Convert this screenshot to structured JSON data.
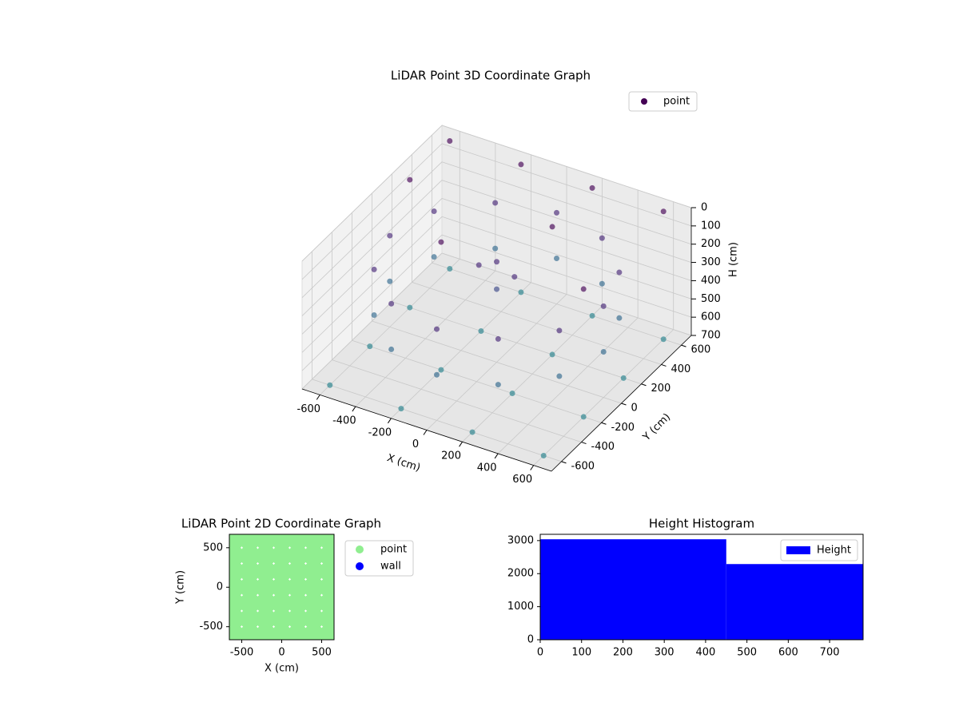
{
  "chart_data": [
    {
      "type": "scatter3d",
      "title": "LiDAR Point 3D Coordinate Graph",
      "xlabel": "X (cm)",
      "ylabel": "Y (cm)",
      "zlabel": "H (cm)",
      "legend": "upper right",
      "cmap": "viridis",
      "clim": [
        0,
        1500
      ],
      "xlim": [
        -700,
        700
      ],
      "ylim": [
        -700,
        700
      ],
      "zlim": [
        700,
        0
      ],
      "xticks": [
        -600,
        -400,
        -200,
        0,
        200,
        400,
        600
      ],
      "yticks": [
        -600,
        -400,
        -200,
        0,
        200,
        400,
        600
      ],
      "zticks": [
        0,
        100,
        200,
        300,
        400,
        500,
        600,
        700
      ],
      "series": [
        {
          "name": "point",
          "color": "#440154",
          "x": [
            600,
            520,
            300,
            0,
            -300,
            -520,
            -600,
            -520,
            -300,
            0,
            300,
            520,
            600,
            520,
            300,
            0,
            -300,
            -520,
            -600,
            -520,
            -300,
            0,
            300,
            520,
            -600,
            -200,
            200,
            600,
            -600,
            -200,
            200,
            600,
            -600,
            -200,
            200,
            600,
            -600,
            -200,
            200,
            600,
            -600,
            -200,
            200,
            600,
            -600,
            600,
            200,
            -200,
            0,
            0,
            100,
            -100
          ],
          "y": [
            0,
            300,
            520,
            600,
            520,
            300,
            0,
            -300,
            -520,
            -600,
            -520,
            -300,
            0,
            300,
            520,
            600,
            520,
            300,
            0,
            -300,
            -520,
            -600,
            -520,
            -300,
            -600,
            -600,
            -600,
            -600,
            -200,
            -200,
            -200,
            -200,
            200,
            200,
            200,
            200,
            600,
            600,
            600,
            600,
            600,
            600,
            600,
            600,
            200,
            -200,
            200,
            -200,
            0,
            0,
            0,
            0
          ],
          "z": [
            200,
            200,
            200,
            200,
            200,
            200,
            200,
            200,
            200,
            200,
            200,
            200,
            450,
            450,
            450,
            450,
            450,
            450,
            450,
            450,
            450,
            450,
            450,
            450,
            700,
            700,
            700,
            700,
            700,
            700,
            700,
            700,
            700,
            700,
            700,
            700,
            700,
            700,
            700,
            700,
            0,
            0,
            0,
            0,
            0,
            0,
            0,
            0,
            150,
            300,
            200,
            200
          ]
        }
      ]
    },
    {
      "type": "scatter",
      "title": "LiDAR Point 2D Coordinate Graph",
      "xlabel": "X (cm)",
      "ylabel": "Y (cm)",
      "legend": "outside right",
      "xlim": [
        -655,
        655
      ],
      "ylim": [
        -665,
        670
      ],
      "xticks": [
        -500,
        0,
        500
      ],
      "yticks": [
        -500,
        0,
        500
      ],
      "series": [
        {
          "name": "point",
          "color": "#90ee90",
          "x": [
            -600,
            -400,
            -200,
            0,
            200,
            400,
            600,
            -600,
            -400,
            -200,
            0,
            200,
            400,
            600,
            -600,
            -400,
            -200,
            0,
            200,
            400,
            600,
            -600,
            -400,
            -200,
            0,
            200,
            400,
            600,
            -600,
            -400,
            -200,
            0,
            200,
            400,
            600,
            -600,
            -400,
            -200,
            0,
            200,
            400,
            600,
            -600,
            -400,
            -200,
            0,
            200,
            400,
            600
          ],
          "y": [
            -600,
            -600,
            -600,
            -600,
            -600,
            -600,
            -600,
            -400,
            -400,
            -400,
            -400,
            -400,
            -400,
            -400,
            -200,
            -200,
            -200,
            -200,
            -200,
            -200,
            -200,
            0,
            0,
            0,
            0,
            0,
            0,
            0,
            200,
            200,
            200,
            200,
            200,
            200,
            200,
            400,
            400,
            400,
            400,
            400,
            400,
            400,
            600,
            600,
            600,
            600,
            600,
            600,
            600
          ]
        },
        {
          "name": "wall",
          "color": "#0000ff",
          "x": [],
          "y": []
        }
      ]
    },
    {
      "type": "histogram",
      "title": "Height Histogram",
      "legend": "upper right",
      "name": "Height",
      "color": "#0000ff",
      "bins": [
        0,
        450,
        781
      ],
      "values": [
        3040,
        2290
      ],
      "xlim": [
        0,
        781
      ],
      "ylim": [
        0,
        3190
      ],
      "xticks": [
        0,
        100,
        200,
        300,
        400,
        500,
        600,
        700
      ],
      "yticks": [
        0,
        1000,
        2000,
        3000
      ]
    }
  ]
}
